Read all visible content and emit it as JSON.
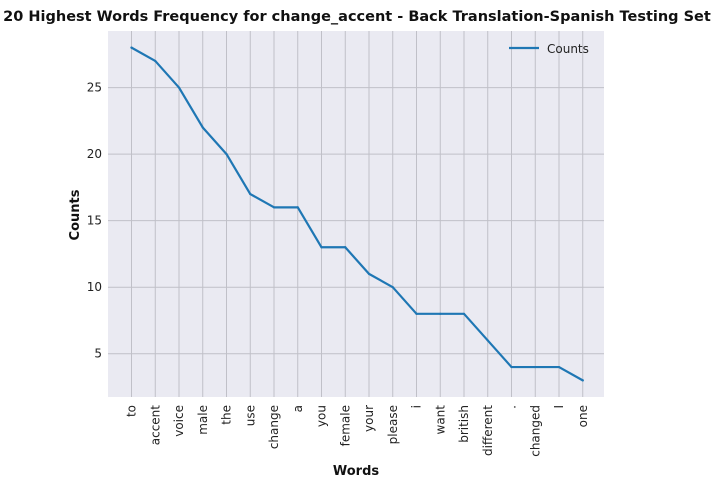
{
  "chart_data": {
    "type": "line",
    "title": "20 Highest Words Frequency for change_accent - Back Translation-Spanish Testing Set",
    "xlabel": "Words",
    "ylabel": "Counts",
    "categories": [
      "to",
      "accent",
      "voice",
      "male",
      "the",
      "use",
      "change",
      "a",
      "you",
      "female",
      "your",
      "please",
      "i",
      "want",
      "british",
      "different",
      ".",
      "changed",
      "I",
      "one"
    ],
    "series": [
      {
        "name": "Counts",
        "values": [
          28,
          27,
          25,
          22,
          20,
          17,
          16,
          16,
          13,
          13,
          11,
          10,
          8,
          8,
          8,
          6,
          4,
          4,
          4,
          3
        ]
      }
    ],
    "ylim": [
      1.75,
      29.25
    ],
    "yticks": [
      5,
      10,
      15,
      20,
      25
    ],
    "grid": true,
    "legend": "top-right",
    "colors": {
      "line": "#1f77b4",
      "background": "#eaeaf2",
      "grid": "#c0c0c8"
    }
  }
}
